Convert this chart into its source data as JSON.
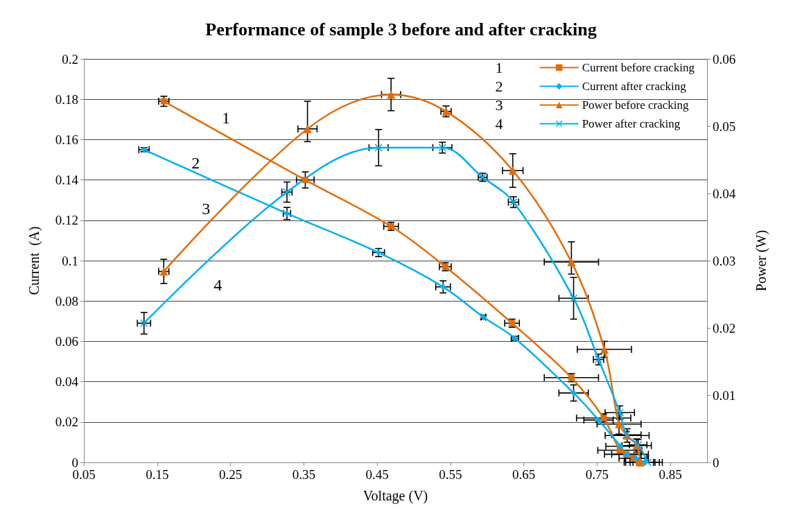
{
  "chart_data": {
    "type": "line",
    "title": "Performance of sample 3 before and after cracking",
    "xlabel": "Voltage (V)",
    "ylabel": "Current  (A)",
    "y2label": "Power (W)",
    "xlim": [
      0.05,
      0.9
    ],
    "xticks": [
      0.05,
      0.15,
      0.25,
      0.35,
      0.45,
      0.55,
      0.65,
      0.75,
      0.85
    ],
    "ylim": [
      0,
      0.2
    ],
    "yticks": [
      0,
      0.02,
      0.04,
      0.06,
      0.08,
      0.1,
      0.12,
      0.14,
      0.16,
      0.18,
      0.2
    ],
    "y2lim": [
      0,
      0.06
    ],
    "y2ticks": [
      0,
      0.01,
      0.02,
      0.03,
      0.04,
      0.05,
      0.06
    ],
    "grid": "y",
    "legend": "top right",
    "annotations": [
      "1",
      "2",
      "3",
      "4",
      "1",
      "2",
      "3",
      "4"
    ],
    "series": [
      {
        "name": "Current before cracking",
        "color": "#e36c09",
        "marker": "square",
        "x": [
          0.159,
          0.352,
          0.469,
          0.543,
          0.634,
          0.715,
          0.759,
          0.781,
          0.79,
          0.8,
          0.807
        ],
        "values": [
          0.179,
          0.14,
          0.117,
          0.097,
          0.069,
          0.042,
          0.022,
          0.006,
          0.004,
          0.002,
          0
        ],
        "errors": [
          0.0025,
          0.004,
          0.002,
          0.002,
          0.002,
          0.002,
          0.002,
          null,
          null,
          null,
          null
        ],
        "xerrors": [
          0.007,
          0.012,
          0.01,
          0.008,
          0.01,
          0.037,
          0.037,
          0.03,
          0.03,
          0.02,
          0.02
        ]
      },
      {
        "name": "Current after cracking",
        "color": "#00b0f0",
        "marker": "diamond",
        "x": [
          0.132,
          0.327,
          0.452,
          0.54,
          0.595,
          0.638,
          0.718,
          0.752,
          0.782,
          0.79,
          0.803,
          0.815
        ],
        "values": [
          0.155,
          0.1234,
          0.104,
          0.087,
          0.072,
          0.0615,
          0.0344,
          0.021,
          0.008,
          0.004,
          0.002,
          0
        ],
        "errors": [
          0.001,
          0.003,
          0.002,
          0.003,
          0.001,
          0.001,
          0.004,
          0.001,
          null,
          null,
          null,
          null
        ],
        "xerrors": [
          0.007,
          0.005,
          0.008,
          0.01,
          0.003,
          0.005,
          0.02,
          0.02,
          0.02,
          0.02,
          0.015,
          0.02
        ]
      },
      {
        "name": "Power before cracking",
        "color": "#e36c09",
        "marker": "triangle",
        "axis": "y2",
        "x": [
          0.159,
          0.355,
          0.469,
          0.544,
          0.635,
          0.715,
          0.76,
          0.78,
          0.791,
          0.804,
          0.809
        ],
        "values": [
          0.0284,
          0.0496,
          0.0547,
          0.0522,
          0.0434,
          0.0298,
          0.0168,
          0.0057,
          0.004,
          0.0025,
          0
        ],
        "errors": [
          0.0018,
          [
            0.0477,
            0.0537
          ],
          0.0024,
          0.0008,
          0.0025,
          [
            0.028,
            0.0328
          ],
          0.0012,
          0.0015,
          0.001,
          0.001,
          null
        ],
        "xerrors": [
          0.007,
          0.013,
          0.013,
          0.007,
          0.014,
          0.037,
          0.037,
          0.03,
          0.03,
          0.02,
          0.02
        ]
      },
      {
        "name": "Power after cracking",
        "color": "#00b0f0",
        "marker": "cross",
        "axis": "y2",
        "x": [
          0.132,
          0.327,
          0.452,
          0.539,
          0.594,
          0.636,
          0.718,
          0.752,
          0.781,
          0.79,
          0.806,
          0.819
        ],
        "values": [
          0.0207,
          0.0402,
          0.0468,
          0.0468,
          0.0424,
          0.0387,
          0.0244,
          0.0153,
          0.0074,
          0.0041,
          0.0026,
          0
        ],
        "errors": [
          0.0016,
          0.0015,
          0.0027,
          0.0008,
          0.0006,
          0.0008,
          0.0031,
          0.0008,
          0.001,
          0.0005,
          0.0008,
          null
        ],
        "xerrors": [
          0.009,
          0.007,
          0.013,
          0.013,
          0.006,
          0.007,
          0.02,
          0.007,
          0.02,
          0.02,
          0.012,
          0.02
        ]
      }
    ]
  }
}
